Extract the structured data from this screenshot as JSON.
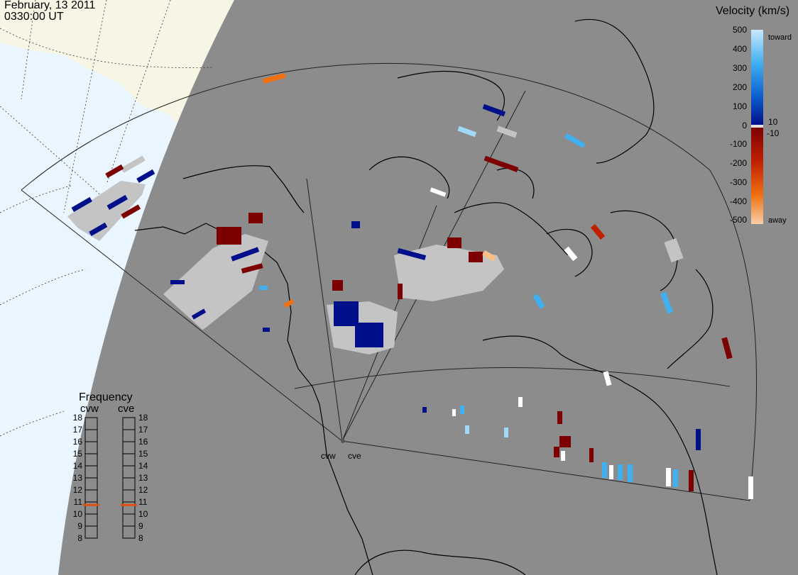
{
  "header": {
    "date": "February, 13 2011",
    "time": "0330:00 UT"
  },
  "velocity_legend": {
    "title": "Velocity (km/s)",
    "ticks": [
      "500",
      "400",
      "300",
      "200",
      "100",
      "0",
      "-100",
      "-200",
      "-300",
      "-400",
      "-500"
    ],
    "toward_label": "toward",
    "away_label": "away",
    "pos_small": "10",
    "neg_small": "-10"
  },
  "frequency_panel": {
    "title": "Frequency",
    "radars": [
      {
        "name": "cvw",
        "frequency": 11
      },
      {
        "name": "cve",
        "frequency": 11
      }
    ],
    "scale": [
      "18",
      "17",
      "16",
      "15",
      "14",
      "13",
      "12",
      "11",
      "10",
      "9",
      "8"
    ],
    "marker_color": "#e05010"
  },
  "site_labels": [
    "cvw",
    "cve"
  ],
  "colors": {
    "night": "#8c8c8c",
    "day_land": "#f7f5e4",
    "day_sea": "#eaf6ff",
    "ground_scatter": "#c4c4c4",
    "toward_deep": "#000f8a",
    "toward_mid": "#0c5fd0",
    "toward_light": "#40b0f0",
    "away_deep": "#7d0000",
    "away_mid": "#c02000",
    "away_orange": "#f07010"
  }
}
